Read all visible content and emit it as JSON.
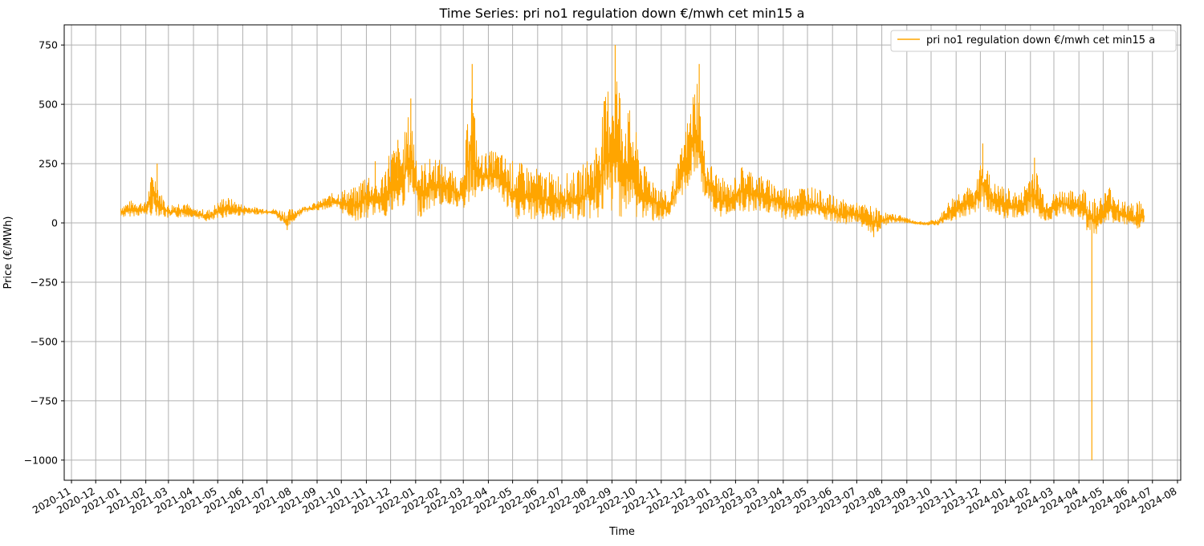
{
  "chart_data": {
    "type": "line",
    "title": "Time Series: pri no1 regulation down €/mwh cet min15 a",
    "xlabel": "Time",
    "ylabel": "Price (€/MWh)",
    "xlim": [
      "2020-10-23",
      "2024-08-05"
    ],
    "ylim": [
      -1085,
      835
    ],
    "grid": true,
    "legend_position": "top-right",
    "x_ticks": [
      "2020-11",
      "2020-12",
      "2021-01",
      "2021-02",
      "2021-03",
      "2021-04",
      "2021-05",
      "2021-06",
      "2021-07",
      "2021-08",
      "2021-09",
      "2021-10",
      "2021-11",
      "2021-12",
      "2022-01",
      "2022-02",
      "2022-03",
      "2022-04",
      "2022-05",
      "2022-06",
      "2022-07",
      "2022-08",
      "2022-09",
      "2022-10",
      "2022-11",
      "2022-12",
      "2023-01",
      "2023-02",
      "2023-03",
      "2023-04",
      "2023-05",
      "2023-06",
      "2023-07",
      "2023-08",
      "2023-09",
      "2023-10",
      "2023-11",
      "2023-12",
      "2024-01",
      "2024-02",
      "2024-03",
      "2024-04",
      "2024-05",
      "2024-06",
      "2024-07",
      "2024-08"
    ],
    "y_ticks": [
      750,
      500,
      250,
      0,
      -250,
      -500,
      -750,
      -1000
    ],
    "y_tick_labels": [
      "750",
      "500",
      "250",
      "0",
      "−250",
      "−500",
      "−750",
      "−1000"
    ],
    "series": [
      {
        "name": "pri no1 regulation down €/mwh cet min15 a",
        "color": "#ffa500",
        "envelope": [
          {
            "x": "2021-01-01",
            "low": 20,
            "high": 80
          },
          {
            "x": "2021-01-15",
            "low": 25,
            "high": 100
          },
          {
            "x": "2021-02-01",
            "low": 30,
            "high": 90
          },
          {
            "x": "2021-02-10",
            "low": 20,
            "high": 250
          },
          {
            "x": "2021-02-20",
            "low": 25,
            "high": 130
          },
          {
            "x": "2021-03-01",
            "low": 15,
            "high": 80
          },
          {
            "x": "2021-03-20",
            "low": 20,
            "high": 100
          },
          {
            "x": "2021-04-01",
            "low": 25,
            "high": 60
          },
          {
            "x": "2021-04-20",
            "low": 0,
            "high": 60
          },
          {
            "x": "2021-05-10",
            "low": 20,
            "high": 120
          },
          {
            "x": "2021-06-01",
            "low": 30,
            "high": 80
          },
          {
            "x": "2021-06-20",
            "low": 35,
            "high": 65
          },
          {
            "x": "2021-07-10",
            "low": 35,
            "high": 60
          },
          {
            "x": "2021-07-25",
            "low": -30,
            "high": 60
          },
          {
            "x": "2021-08-15",
            "low": 45,
            "high": 70
          },
          {
            "x": "2021-09-01",
            "low": 50,
            "high": 90
          },
          {
            "x": "2021-09-20",
            "low": 60,
            "high": 130
          },
          {
            "x": "2021-10-05",
            "low": 30,
            "high": 150
          },
          {
            "x": "2021-10-20",
            "low": 0,
            "high": 160
          },
          {
            "x": "2021-11-01",
            "low": 0,
            "high": 250
          },
          {
            "x": "2021-11-15",
            "low": 40,
            "high": 150
          },
          {
            "x": "2021-12-01",
            "low": 0,
            "high": 350
          },
          {
            "x": "2021-12-15",
            "low": 50,
            "high": 340
          },
          {
            "x": "2021-12-25",
            "low": 80,
            "high": 520
          },
          {
            "x": "2022-01-05",
            "low": 10,
            "high": 260
          },
          {
            "x": "2022-01-25",
            "low": 60,
            "high": 300
          },
          {
            "x": "2022-02-15",
            "low": 70,
            "high": 230
          },
          {
            "x": "2022-03-01",
            "low": 50,
            "high": 200
          },
          {
            "x": "2022-03-10",
            "low": 60,
            "high": 670
          },
          {
            "x": "2022-03-20",
            "low": 110,
            "high": 300
          },
          {
            "x": "2022-04-10",
            "low": 130,
            "high": 320
          },
          {
            "x": "2022-05-01",
            "low": 0,
            "high": 280
          },
          {
            "x": "2022-05-20",
            "low": 0,
            "high": 260
          },
          {
            "x": "2022-06-10",
            "low": 0,
            "high": 230
          },
          {
            "x": "2022-07-01",
            "low": 0,
            "high": 220
          },
          {
            "x": "2022-07-20",
            "low": 0,
            "high": 230
          },
          {
            "x": "2022-08-10",
            "low": 0,
            "high": 330
          },
          {
            "x": "2022-08-25",
            "low": 0,
            "high": 600
          },
          {
            "x": "2022-09-05",
            "low": 0,
            "high": 750
          },
          {
            "x": "2022-09-15",
            "low": 0,
            "high": 540
          },
          {
            "x": "2022-09-25",
            "low": 0,
            "high": 500
          },
          {
            "x": "2022-10-10",
            "low": 0,
            "high": 260
          },
          {
            "x": "2022-10-25",
            "low": 0,
            "high": 200
          },
          {
            "x": "2022-11-10",
            "low": 0,
            "high": 120
          },
          {
            "x": "2022-11-25",
            "low": 100,
            "high": 310
          },
          {
            "x": "2022-12-05",
            "low": 130,
            "high": 480
          },
          {
            "x": "2022-12-15",
            "low": 180,
            "high": 670
          },
          {
            "x": "2022-12-25",
            "low": 100,
            "high": 300
          },
          {
            "x": "2023-01-10",
            "low": 0,
            "high": 220
          },
          {
            "x": "2023-01-25",
            "low": 40,
            "high": 170
          },
          {
            "x": "2023-02-10",
            "low": 40,
            "high": 260
          },
          {
            "x": "2023-03-01",
            "low": 40,
            "high": 220
          },
          {
            "x": "2023-03-20",
            "low": 30,
            "high": 180
          },
          {
            "x": "2023-04-10",
            "low": 0,
            "high": 160
          },
          {
            "x": "2023-05-01",
            "low": 20,
            "high": 170
          },
          {
            "x": "2023-05-20",
            "low": 10,
            "high": 140
          },
          {
            "x": "2023-06-10",
            "low": -20,
            "high": 110
          },
          {
            "x": "2023-07-01",
            "low": 0,
            "high": 90
          },
          {
            "x": "2023-07-20",
            "low": -60,
            "high": 80
          },
          {
            "x": "2023-08-10",
            "low": 0,
            "high": 40
          },
          {
            "x": "2023-08-25",
            "low": 0,
            "high": 35
          },
          {
            "x": "2023-09-10",
            "low": -5,
            "high": 10
          },
          {
            "x": "2023-09-25",
            "low": -10,
            "high": 5
          },
          {
            "x": "2023-10-10",
            "low": -10,
            "high": 20
          },
          {
            "x": "2023-10-25",
            "low": 0,
            "high": 110
          },
          {
            "x": "2023-11-10",
            "low": 20,
            "high": 160
          },
          {
            "x": "2023-11-25",
            "low": 40,
            "high": 150
          },
          {
            "x": "2023-12-03",
            "low": 60,
            "high": 330
          },
          {
            "x": "2023-12-15",
            "low": 30,
            "high": 180
          },
          {
            "x": "2024-01-01",
            "low": 10,
            "high": 160
          },
          {
            "x": "2024-01-20",
            "low": 20,
            "high": 130
          },
          {
            "x": "2024-02-05",
            "low": 20,
            "high": 270
          },
          {
            "x": "2024-02-20",
            "low": 0,
            "high": 110
          },
          {
            "x": "2024-03-10",
            "low": 30,
            "high": 150
          },
          {
            "x": "2024-03-25",
            "low": 20,
            "high": 140
          },
          {
            "x": "2024-04-10",
            "low": 0,
            "high": 160
          },
          {
            "x": "2024-04-17",
            "low": -1000,
            "high": 120
          },
          {
            "x": "2024-04-25",
            "low": -20,
            "high": 110
          },
          {
            "x": "2024-05-10",
            "low": 0,
            "high": 170
          },
          {
            "x": "2024-05-25",
            "low": -20,
            "high": 100
          },
          {
            "x": "2024-06-05",
            "low": -30,
            "high": 90
          },
          {
            "x": "2024-06-15",
            "low": -40,
            "high": 110
          },
          {
            "x": "2024-06-21",
            "low": 0,
            "high": 60
          }
        ],
        "spikes": [
          {
            "x": "2021-02-15",
            "y": 250
          },
          {
            "x": "2021-11-12",
            "y": 260
          },
          {
            "x": "2021-12-10",
            "y": 350
          },
          {
            "x": "2021-12-26",
            "y": 525
          },
          {
            "x": "2022-03-12",
            "y": 670
          },
          {
            "x": "2022-09-05",
            "y": 750
          },
          {
            "x": "2022-12-18",
            "y": 670
          },
          {
            "x": "2023-12-04",
            "y": 335
          },
          {
            "x": "2024-02-06",
            "y": 275
          },
          {
            "x": "2024-04-17",
            "y": -1000
          },
          {
            "x": "2021-07-26",
            "y": -30
          },
          {
            "x": "2023-07-22",
            "y": -60
          }
        ]
      }
    ]
  }
}
